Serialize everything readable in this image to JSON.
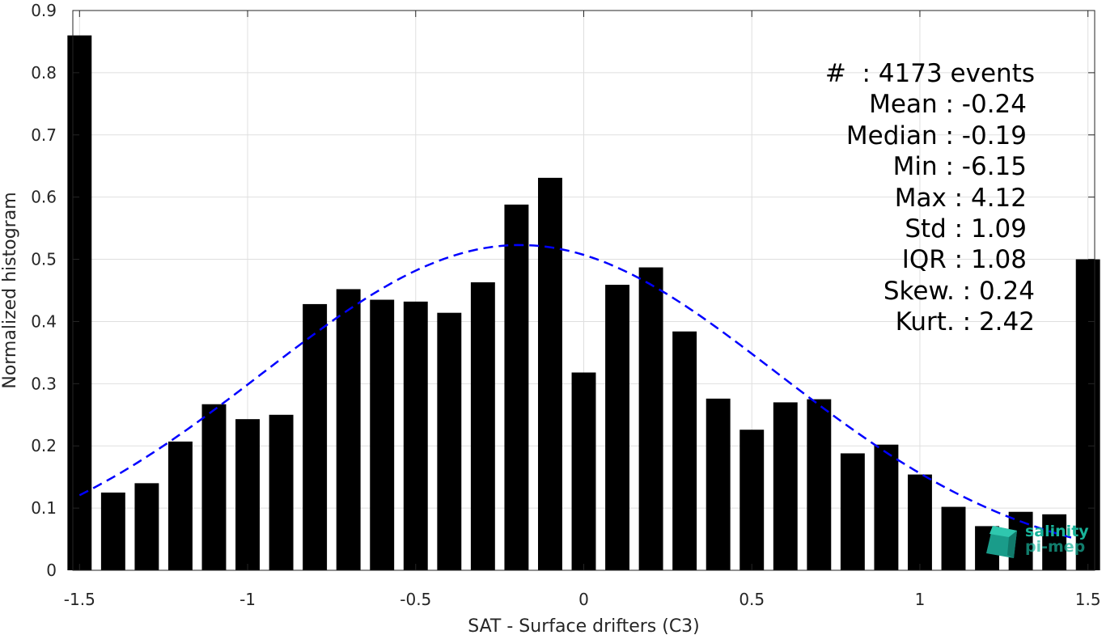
{
  "chart_data": {
    "type": "bar",
    "xlabel": "SAT - Surface drifters (C3)",
    "ylabel": "Normalized histogram",
    "xlim": [
      -1.52,
      1.52
    ],
    "ylim": [
      0,
      0.9
    ],
    "xticks": [
      "-1.5",
      "-1",
      "-0.5",
      "0",
      "0.5",
      "1",
      "1.5"
    ],
    "xtick_values": [
      -1.5,
      -1,
      -0.5,
      0,
      0.5,
      1,
      1.5
    ],
    "yticks": [
      "0",
      "0.1",
      "0.2",
      "0.3",
      "0.4",
      "0.5",
      "0.6",
      "0.7",
      "0.8",
      "0.9"
    ],
    "ytick_values": [
      0,
      0.1,
      0.2,
      0.3,
      0.4,
      0.5,
      0.6,
      0.7,
      0.8,
      0.9
    ],
    "bin_centers": [
      -1.5,
      -1.4,
      -1.3,
      -1.2,
      -1.1,
      -1.0,
      -0.9,
      -0.8,
      -0.7,
      -0.6,
      -0.5,
      -0.4,
      -0.3,
      -0.2,
      -0.1,
      0.0,
      0.1,
      0.2,
      0.3,
      0.4,
      0.5,
      0.6,
      0.7,
      0.8,
      0.9,
      1.0,
      1.1,
      1.2,
      1.3,
      1.4,
      1.5
    ],
    "values": [
      0.86,
      0.125,
      0.14,
      0.207,
      0.267,
      0.243,
      0.25,
      0.428,
      0.452,
      0.435,
      0.432,
      0.414,
      0.463,
      0.588,
      0.631,
      0.318,
      0.459,
      0.487,
      0.384,
      0.276,
      0.226,
      0.27,
      0.275,
      0.188,
      0.202,
      0.154,
      0.102,
      0.071,
      0.094,
      0.09,
      0.5
    ],
    "bar_color": "#000000",
    "fit_curve": {
      "style": "dashed",
      "color": "#0000ff",
      "mean": -0.19,
      "std": 0.765,
      "peak": 0.523,
      "x_range": [
        -1.5,
        1.45
      ]
    },
    "grid": true
  },
  "stats": {
    "count": "#  : 4173 events",
    "mean": "Mean : -0.24",
    "median": "Median : -0.19",
    "min": "Min : -6.15",
    "max": "Max : 4.12",
    "std": "Std : 1.09",
    "iqr": "IQR : 1.08",
    "skew": "Skew. : 0.24",
    "kurt": "Kurt. : 2.42"
  },
  "logo": {
    "line1": "salinity",
    "line2": "pi-mep",
    "color": "#19b39a"
  }
}
